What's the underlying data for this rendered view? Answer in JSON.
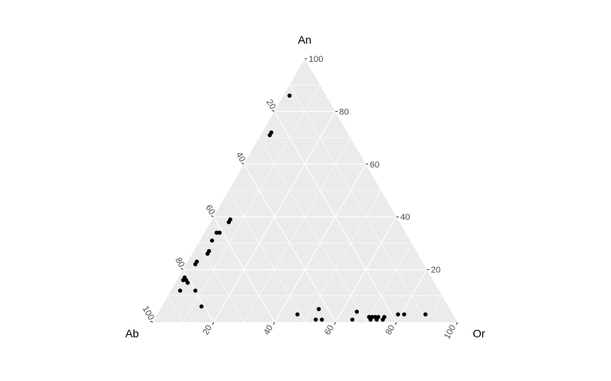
{
  "chart_data": {
    "type": "scatter",
    "subtype": "ternary",
    "title": "",
    "axes": {
      "top": "An",
      "left": "Ab",
      "right": "Or"
    },
    "ticks": [
      "20",
      "40",
      "60",
      "80",
      "100"
    ],
    "tick_values": [
      20,
      40,
      60,
      80,
      100
    ],
    "grid": true,
    "grid_step": 10,
    "colors": {
      "panel": "#ebebeb",
      "grid": "#ffffff",
      "point": "#000000",
      "tick_text": "#4d4d4d"
    },
    "points": [
      {
        "An": 86,
        "Ab": 12,
        "Or": 2
      },
      {
        "An": 71,
        "Ab": 26,
        "Or": 3
      },
      {
        "An": 72,
        "Ab": 25,
        "Or": 3
      },
      {
        "An": 38,
        "Ab": 56,
        "Or": 6
      },
      {
        "An": 39,
        "Ab": 55,
        "Or": 6
      },
      {
        "An": 34,
        "Ab": 61,
        "Or": 5
      },
      {
        "An": 34,
        "Ab": 62,
        "Or": 4
      },
      {
        "An": 31,
        "Ab": 65,
        "Or": 4
      },
      {
        "An": 27,
        "Ab": 68,
        "Or": 5
      },
      {
        "An": 26,
        "Ab": 69,
        "Or": 5
      },
      {
        "An": 23,
        "Ab": 74,
        "Or": 3
      },
      {
        "An": 22,
        "Ab": 75,
        "Or": 3
      },
      {
        "An": 16,
        "Ab": 82,
        "Or": 2
      },
      {
        "An": 17,
        "Ab": 81,
        "Or": 2
      },
      {
        "An": 16,
        "Ab": 81,
        "Or": 3
      },
      {
        "An": 15,
        "Ab": 81,
        "Or": 4
      },
      {
        "An": 12,
        "Ab": 85,
        "Or": 3
      },
      {
        "An": 12,
        "Ab": 80,
        "Or": 8
      },
      {
        "An": 6,
        "Ab": 81,
        "Or": 13
      },
      {
        "An": 3,
        "Ab": 51,
        "Or": 46
      },
      {
        "An": 5,
        "Ab": 43,
        "Or": 52
      },
      {
        "An": 1,
        "Ab": 46,
        "Or": 53
      },
      {
        "An": 1,
        "Ab": 44,
        "Or": 55
      },
      {
        "An": 1,
        "Ab": 34,
        "Or": 65
      },
      {
        "An": 4,
        "Ab": 31,
        "Or": 65
      },
      {
        "An": 2,
        "Ab": 28,
        "Or": 70
      },
      {
        "An": 1,
        "Ab": 28,
        "Or": 71
      },
      {
        "An": 2,
        "Ab": 27,
        "Or": 71
      },
      {
        "An": 2,
        "Ab": 26,
        "Or": 72
      },
      {
        "An": 1,
        "Ab": 26,
        "Or": 73
      },
      {
        "An": 2,
        "Ab": 25,
        "Or": 73
      },
      {
        "An": 1,
        "Ab": 24,
        "Or": 75
      },
      {
        "An": 2,
        "Ab": 23,
        "Or": 75
      },
      {
        "An": 3,
        "Ab": 18,
        "Or": 79
      },
      {
        "An": 3,
        "Ab": 16,
        "Or": 81
      },
      {
        "An": 3,
        "Ab": 9,
        "Or": 88
      }
    ]
  }
}
